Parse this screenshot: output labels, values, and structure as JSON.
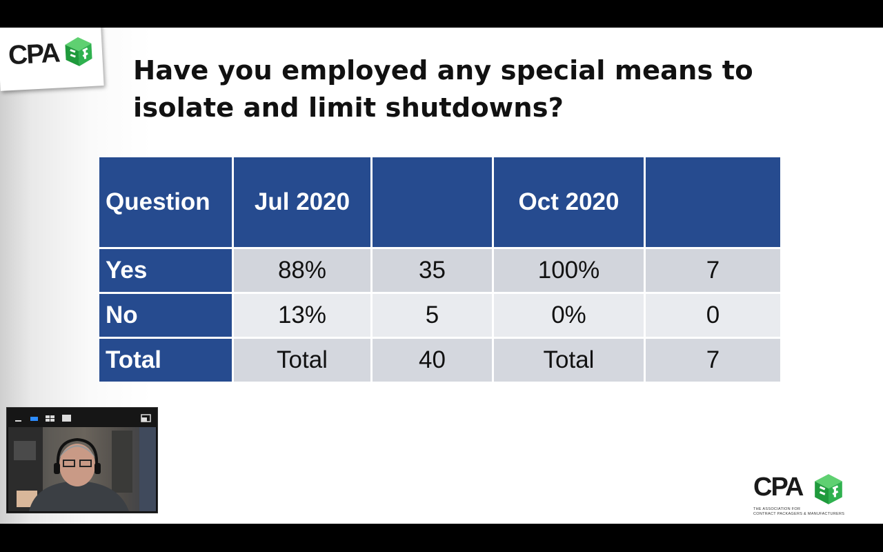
{
  "logo": {
    "brand": "CPA",
    "tagline_line1": "THE ASSOCIATION FOR",
    "tagline_line2": "CONTRACT PACKAGERS & MANUFACTURERS"
  },
  "slide_title": "Have you employed any special means to isolate and limit shutdowns?",
  "table": {
    "headers": [
      "Question",
      "Jul 2020",
      "",
      "Oct 2020",
      ""
    ],
    "rows": [
      {
        "label": "Yes",
        "cells": [
          "88%",
          "35",
          "100%",
          "7"
        ]
      },
      {
        "label": "No",
        "cells": [
          "13%",
          "5",
          "0%",
          "0"
        ]
      },
      {
        "label": "Total",
        "cells": [
          "Total",
          "40",
          "Total",
          "7"
        ]
      }
    ]
  },
  "colors": {
    "header_blue": "#264b8f",
    "logo_green": "#1f9a3c"
  },
  "video_controls": [
    "minimize-icon",
    "active-speaker-view-icon",
    "gallery-view-icon",
    "fullscreen-icon",
    "exit-minimize-icon"
  ]
}
